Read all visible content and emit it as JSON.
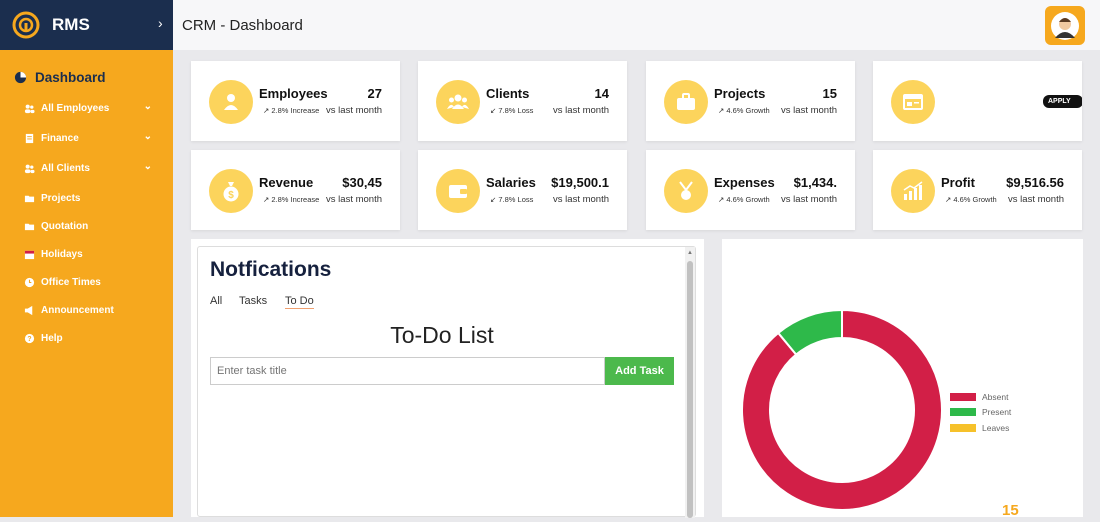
{
  "app": {
    "name": "RMS",
    "expand": "›"
  },
  "topbar": {
    "title": "CRM - Dashboard"
  },
  "sidebar": {
    "dashboard": "Dashboard",
    "items": [
      {
        "label": "All Employees",
        "icon": "users-icon",
        "caret": "⌄"
      },
      {
        "label": "Finance",
        "icon": "document-icon",
        "caret": "⌄"
      },
      {
        "label": "All Clients",
        "icon": "clients-icon",
        "caret": "⌄"
      },
      {
        "label": "Projects",
        "icon": "folder-icon"
      },
      {
        "label": "Quotation",
        "icon": "folder-icon"
      },
      {
        "label": "Holidays",
        "icon": "calendar-icon"
      },
      {
        "label": "Office Times",
        "icon": "clock-icon"
      },
      {
        "label": "Announcement",
        "icon": "megaphone-icon"
      },
      {
        "label": "Help",
        "icon": "help-icon"
      }
    ]
  },
  "cards": [
    {
      "title": "Employees",
      "value": "27",
      "change": "↗ 2.8% Increase",
      "compare": "vs last month",
      "icon": "person-icon"
    },
    {
      "title": "Clients",
      "value": "14",
      "change": "↙ 7.8% Loss",
      "compare": "vs last month",
      "icon": "group-icon"
    },
    {
      "title": "Projects",
      "value": "15",
      "change": "↗ 4.6% Growth",
      "compare": "vs last month",
      "icon": "briefcase-icon"
    },
    {
      "title": "",
      "value": "",
      "change": "",
      "compare": "",
      "icon": "browser-window-icon",
      "apply": "APPLY"
    },
    {
      "title": "Revenue",
      "value": "$30,45",
      "change": "↗ 2.8% Increase",
      "compare": "vs last month",
      "icon": "money-bag-icon"
    },
    {
      "title": "Salaries",
      "value": "$19,500.1",
      "change": "↙ 7.8% Loss",
      "compare": "vs last month",
      "icon": "wallet-icon"
    },
    {
      "title": "Expenses",
      "value": "$1,434.",
      "change": "↗ 4.6% Growth",
      "compare": "vs last month",
      "icon": "coins-icon"
    },
    {
      "title": "Profit",
      "value": "$9,516.56",
      "change": "↗ 4.6% Growth",
      "compare": "vs last month",
      "icon": "growth-chart-icon"
    }
  ],
  "notifications": {
    "title": "Notfications",
    "tabs": [
      "All",
      "Tasks",
      "To Do"
    ],
    "todo_title": "To-Do List",
    "input_placeholder": "Enter task title",
    "add_button": "Add Task"
  },
  "chart_data": {
    "type": "pie",
    "title": "",
    "legend_position": "right",
    "labels": [
      "Absent",
      "Present",
      "Leaves"
    ],
    "values": [
      89,
      11,
      0
    ],
    "colors": [
      "#d21f47",
      "#2eb94a",
      "#f6c12a"
    ]
  },
  "footer_number": "15",
  "colors": {
    "sidebar": "#f6a81e",
    "brand": "#1b2e4e",
    "icon_circle": "#fcd45c",
    "add_button": "#4cb94c"
  }
}
